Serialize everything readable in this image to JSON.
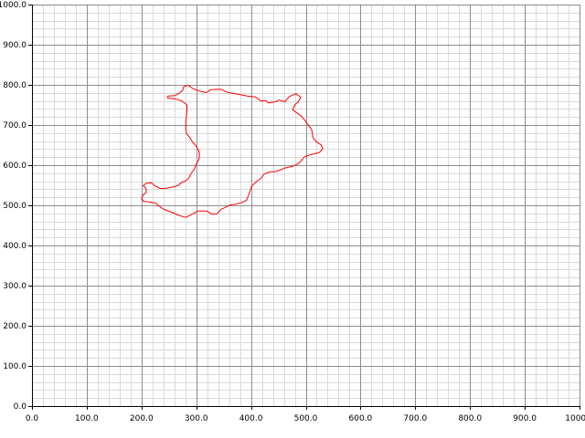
{
  "chart_data": {
    "type": "line",
    "title": "",
    "xlabel": "",
    "ylabel": "",
    "xlim": [
      0,
      1000
    ],
    "ylim": [
      0,
      1000
    ],
    "grid": true,
    "x_ticks": [
      "0.0",
      "100.0",
      "200.0",
      "300.0",
      "400.0",
      "500.0",
      "600.0",
      "700.0",
      "800.0",
      "900.0",
      "1000.0"
    ],
    "y_ticks": [
      "0.0",
      "100.0",
      "200.0",
      "300.0",
      "400.0",
      "500.0",
      "600.0",
      "700.0",
      "800.0",
      "900.0",
      "1000.0"
    ],
    "colors": {
      "series": "#ff0000",
      "minor_grid": "#d9d9d9",
      "major_grid": "#8c8c8c",
      "axis": "#000000"
    },
    "series": [
      {
        "closed": true,
        "points": [
          [
            277,
            795
          ],
          [
            285,
            799
          ],
          [
            294,
            791
          ],
          [
            302,
            786
          ],
          [
            318,
            781
          ],
          [
            327,
            788
          ],
          [
            345,
            789
          ],
          [
            358,
            781
          ],
          [
            375,
            777
          ],
          [
            393,
            772
          ],
          [
            408,
            770
          ],
          [
            418,
            760
          ],
          [
            427,
            761
          ],
          [
            432,
            755
          ],
          [
            445,
            758
          ],
          [
            451,
            762
          ],
          [
            462,
            758
          ],
          [
            470,
            771
          ],
          [
            482,
            778
          ],
          [
            491,
            769
          ],
          [
            486,
            757
          ],
          [
            481,
            752
          ],
          [
            476,
            738
          ],
          [
            486,
            728
          ],
          [
            492,
            722
          ],
          [
            497,
            714
          ],
          [
            503,
            703
          ],
          [
            511,
            688
          ],
          [
            513,
            669
          ],
          [
            520,
            657
          ],
          [
            528,
            651
          ],
          [
            531,
            640
          ],
          [
            524,
            631
          ],
          [
            511,
            627
          ],
          [
            498,
            621
          ],
          [
            487,
            604
          ],
          [
            476,
            597
          ],
          [
            462,
            593
          ],
          [
            446,
            584
          ],
          [
            434,
            583
          ],
          [
            424,
            578
          ],
          [
            418,
            567
          ],
          [
            410,
            559
          ],
          [
            401,
            547
          ],
          [
            398,
            535
          ],
          [
            395,
            523
          ],
          [
            392,
            513
          ],
          [
            384,
            507
          ],
          [
            373,
            503
          ],
          [
            362,
            501
          ],
          [
            355,
            496
          ],
          [
            345,
            490
          ],
          [
            338,
            479
          ],
          [
            328,
            478
          ],
          [
            319,
            486
          ],
          [
            303,
            486
          ],
          [
            293,
            478
          ],
          [
            281,
            470
          ],
          [
            268,
            475
          ],
          [
            255,
            483
          ],
          [
            241,
            490
          ],
          [
            233,
            497
          ],
          [
            226,
            505
          ],
          [
            216,
            508
          ],
          [
            204,
            510
          ],
          [
            200,
            516
          ],
          [
            203,
            526
          ],
          [
            209,
            533
          ],
          [
            208,
            543
          ],
          [
            203,
            549
          ],
          [
            209,
            555
          ],
          [
            218,
            556
          ],
          [
            224,
            549
          ],
          [
            234,
            542
          ],
          [
            244,
            542
          ],
          [
            254,
            545
          ],
          [
            259,
            546
          ],
          [
            267,
            549
          ],
          [
            273,
            557
          ],
          [
            280,
            560
          ],
          [
            286,
            567
          ],
          [
            291,
            580
          ],
          [
            297,
            591
          ],
          [
            300,
            603
          ],
          [
            305,
            614
          ],
          [
            306,
            628
          ],
          [
            304,
            638
          ],
          [
            299,
            649
          ],
          [
            293,
            658
          ],
          [
            288,
            669
          ],
          [
            282,
            679
          ],
          [
            281,
            692
          ],
          [
            281,
            708
          ],
          [
            282,
            719
          ],
          [
            283,
            735
          ],
          [
            283,
            750
          ],
          [
            274,
            760
          ],
          [
            264,
            764
          ],
          [
            255,
            766
          ],
          [
            248,
            767
          ],
          [
            248,
            772
          ],
          [
            260,
            773
          ],
          [
            270,
            780
          ],
          [
            275,
            786
          ],
          [
            277,
            795
          ]
        ]
      }
    ]
  }
}
